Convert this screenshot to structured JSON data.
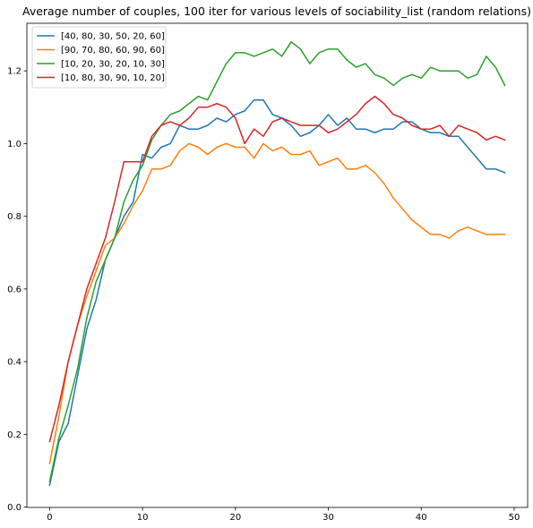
{
  "chart_data": {
    "type": "line",
    "title": "Average number of couples, 100 iter for various levels of sociability_list  (random relations)",
    "xlabel": "",
    "ylabel": "",
    "xlim": [
      -2.45,
      51.45
    ],
    "ylim": [
      -0.001,
      1.331
    ],
    "xticks": [
      0,
      10,
      20,
      30,
      40,
      50
    ],
    "yticks": [
      0.0,
      0.2,
      0.4,
      0.6,
      0.8,
      1.0,
      1.2
    ],
    "ytick_labels": [
      "0.0",
      "0.2",
      "0.4",
      "0.6",
      "0.8",
      "1.0",
      "1.2"
    ],
    "grid": false,
    "legend_position": "top-left",
    "x": [
      0,
      1,
      2,
      3,
      4,
      5,
      6,
      7,
      8,
      9,
      10,
      11,
      12,
      13,
      14,
      15,
      16,
      17,
      18,
      19,
      20,
      21,
      22,
      23,
      24,
      25,
      26,
      27,
      28,
      29,
      30,
      31,
      32,
      33,
      34,
      35,
      36,
      37,
      38,
      39,
      40,
      41,
      42,
      43,
      44,
      45,
      46,
      47,
      48,
      49
    ],
    "series": [
      {
        "name": "[40, 80, 30, 50, 20, 60]",
        "color": "#1f77b4",
        "values": [
          0.06,
          0.18,
          0.23,
          0.36,
          0.49,
          0.57,
          0.68,
          0.74,
          0.8,
          0.84,
          0.97,
          0.96,
          0.99,
          1.0,
          1.05,
          1.04,
          1.04,
          1.05,
          1.07,
          1.06,
          1.08,
          1.09,
          1.12,
          1.12,
          1.08,
          1.07,
          1.05,
          1.02,
          1.03,
          1.05,
          1.08,
          1.05,
          1.07,
          1.04,
          1.04,
          1.03,
          1.04,
          1.04,
          1.06,
          1.06,
          1.04,
          1.03,
          1.03,
          1.02,
          1.02,
          0.99,
          0.96,
          0.93,
          0.93,
          0.92
        ]
      },
      {
        "name": "[90, 70, 80, 60, 90, 60]",
        "color": "#ff7f0e",
        "values": [
          0.12,
          0.25,
          0.4,
          0.5,
          0.58,
          0.65,
          0.72,
          0.74,
          0.78,
          0.83,
          0.87,
          0.93,
          0.93,
          0.94,
          0.98,
          1.0,
          0.99,
          0.97,
          0.99,
          1.0,
          0.99,
          0.99,
          0.96,
          1.0,
          0.98,
          0.99,
          0.97,
          0.97,
          0.98,
          0.94,
          0.95,
          0.96,
          0.93,
          0.93,
          0.94,
          0.92,
          0.89,
          0.85,
          0.82,
          0.79,
          0.77,
          0.75,
          0.75,
          0.74,
          0.76,
          0.77,
          0.76,
          0.75,
          0.75,
          0.75
        ]
      },
      {
        "name": "[10, 20, 30, 20, 10, 30]",
        "color": "#2ca02c",
        "values": [
          0.07,
          0.19,
          0.28,
          0.38,
          0.52,
          0.62,
          0.68,
          0.74,
          0.84,
          0.9,
          0.94,
          1.01,
          1.05,
          1.08,
          1.09,
          1.11,
          1.13,
          1.12,
          1.17,
          1.22,
          1.25,
          1.25,
          1.24,
          1.25,
          1.26,
          1.24,
          1.28,
          1.26,
          1.22,
          1.25,
          1.26,
          1.26,
          1.23,
          1.21,
          1.22,
          1.19,
          1.18,
          1.16,
          1.18,
          1.19,
          1.18,
          1.21,
          1.2,
          1.2,
          1.2,
          1.18,
          1.19,
          1.24,
          1.21,
          1.16
        ]
      },
      {
        "name": "[10, 80, 30, 90, 10, 20]",
        "color": "#d62728",
        "values": [
          0.18,
          0.28,
          0.4,
          0.5,
          0.6,
          0.67,
          0.74,
          0.84,
          0.95,
          0.95,
          0.95,
          1.02,
          1.05,
          1.06,
          1.05,
          1.07,
          1.1,
          1.1,
          1.11,
          1.1,
          1.07,
          1.0,
          1.04,
          1.02,
          1.06,
          1.07,
          1.06,
          1.05,
          1.05,
          1.05,
          1.03,
          1.04,
          1.06,
          1.08,
          1.11,
          1.13,
          1.11,
          1.08,
          1.07,
          1.05,
          1.04,
          1.04,
          1.05,
          1.02,
          1.05,
          1.04,
          1.03,
          1.01,
          1.02,
          1.01
        ]
      }
    ]
  }
}
